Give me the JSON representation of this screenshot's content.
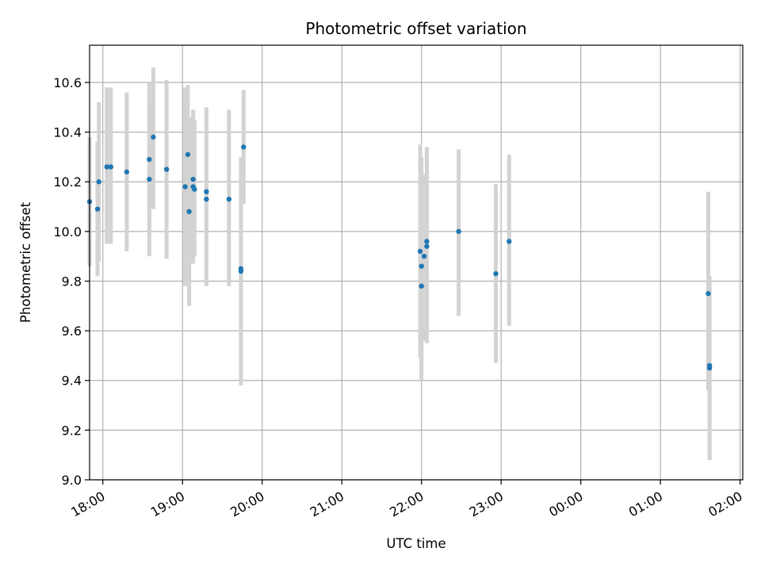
{
  "chart_data": {
    "type": "scatter",
    "title": "Photometric offset variation",
    "xlabel": "UTC time",
    "ylabel": "Photometric offset",
    "ylim": [
      9.0,
      10.75
    ],
    "xlim": [
      "17:50",
      "02:02"
    ],
    "grid": true,
    "x_tick_labels": [
      "18:00",
      "19:00",
      "20:00",
      "21:00",
      "22:00",
      "23:00",
      "00:00",
      "01:00",
      "02:00"
    ],
    "y_tick_labels": [
      "9.0",
      "9.2",
      "9.4",
      "9.6",
      "9.8",
      "10.0",
      "10.2",
      "10.4",
      "10.6"
    ],
    "colors": {
      "points": "#1f77b4",
      "error_bars": "#d3d3d3",
      "grid": "#b0b0b0"
    },
    "series": [
      {
        "points": [
          {
            "t": "17:50",
            "y": 10.12,
            "lo": 9.86,
            "hi": 10.38
          },
          {
            "t": "17:56",
            "y": 10.09,
            "lo": 9.82,
            "hi": 10.36
          },
          {
            "t": "17:57",
            "y": 10.2,
            "lo": 9.88,
            "hi": 10.52
          },
          {
            "t": "18:03",
            "y": 10.26,
            "lo": 9.95,
            "hi": 10.58
          },
          {
            "t": "18:06",
            "y": 10.26,
            "lo": 9.95,
            "hi": 10.58
          },
          {
            "t": "18:18",
            "y": 10.24,
            "lo": 9.92,
            "hi": 10.56
          },
          {
            "t": "18:35",
            "y": 10.29,
            "lo": 9.98,
            "hi": 10.6
          },
          {
            "t": "18:35",
            "y": 10.21,
            "lo": 9.9,
            "hi": 10.52
          },
          {
            "t": "18:38",
            "y": 10.38,
            "lo": 10.09,
            "hi": 10.66
          },
          {
            "t": "18:48",
            "y": 10.25,
            "lo": 9.89,
            "hi": 10.61
          },
          {
            "t": "19:02",
            "y": 10.18,
            "lo": 9.78,
            "hi": 10.58
          },
          {
            "t": "19:04",
            "y": 10.31,
            "lo": 10.03,
            "hi": 10.59
          },
          {
            "t": "19:05",
            "y": 10.08,
            "lo": 9.7,
            "hi": 10.46
          },
          {
            "t": "19:08",
            "y": 10.21,
            "lo": 9.92,
            "hi": 10.49
          },
          {
            "t": "19:08",
            "y": 10.18,
            "lo": 9.87,
            "hi": 10.48
          },
          {
            "t": "19:09",
            "y": 10.17,
            "lo": 9.9,
            "hi": 10.45
          },
          {
            "t": "19:18",
            "y": 10.16,
            "lo": 9.84,
            "hi": 10.49
          },
          {
            "t": "19:18",
            "y": 10.13,
            "lo": 9.78,
            "hi": 10.5
          },
          {
            "t": "19:35",
            "y": 10.13,
            "lo": 9.78,
            "hi": 10.49
          },
          {
            "t": "19:44",
            "y": 9.85,
            "lo": 9.42,
            "hi": 10.28
          },
          {
            "t": "19:44",
            "y": 9.84,
            "lo": 9.38,
            "hi": 10.3
          },
          {
            "t": "19:46",
            "y": 10.34,
            "lo": 10.11,
            "hi": 10.57
          },
          {
            "t": "21:59",
            "y": 9.92,
            "lo": 9.49,
            "hi": 10.35
          },
          {
            "t": "22:00",
            "y": 9.86,
            "lo": 9.42,
            "hi": 10.3
          },
          {
            "t": "22:00",
            "y": 9.78,
            "lo": 9.4,
            "hi": 10.22
          },
          {
            "t": "22:02",
            "y": 9.9,
            "lo": 9.56,
            "hi": 10.23
          },
          {
            "t": "22:04",
            "y": 9.94,
            "lo": 9.55,
            "hi": 10.33
          },
          {
            "t": "22:04",
            "y": 9.96,
            "lo": 9.58,
            "hi": 10.34
          },
          {
            "t": "22:28",
            "y": 10.0,
            "lo": 9.66,
            "hi": 10.33
          },
          {
            "t": "22:56",
            "y": 9.83,
            "lo": 9.47,
            "hi": 10.19
          },
          {
            "t": "23:06",
            "y": 9.96,
            "lo": 9.62,
            "hi": 10.31
          },
          {
            "t": "01:36",
            "y": 9.75,
            "lo": 9.36,
            "hi": 10.16
          },
          {
            "t": "01:37",
            "y": 9.46,
            "lo": 9.08,
            "hi": 9.82
          },
          {
            "t": "01:37",
            "y": 9.45,
            "lo": 9.08,
            "hi": 9.81
          }
        ]
      }
    ]
  }
}
